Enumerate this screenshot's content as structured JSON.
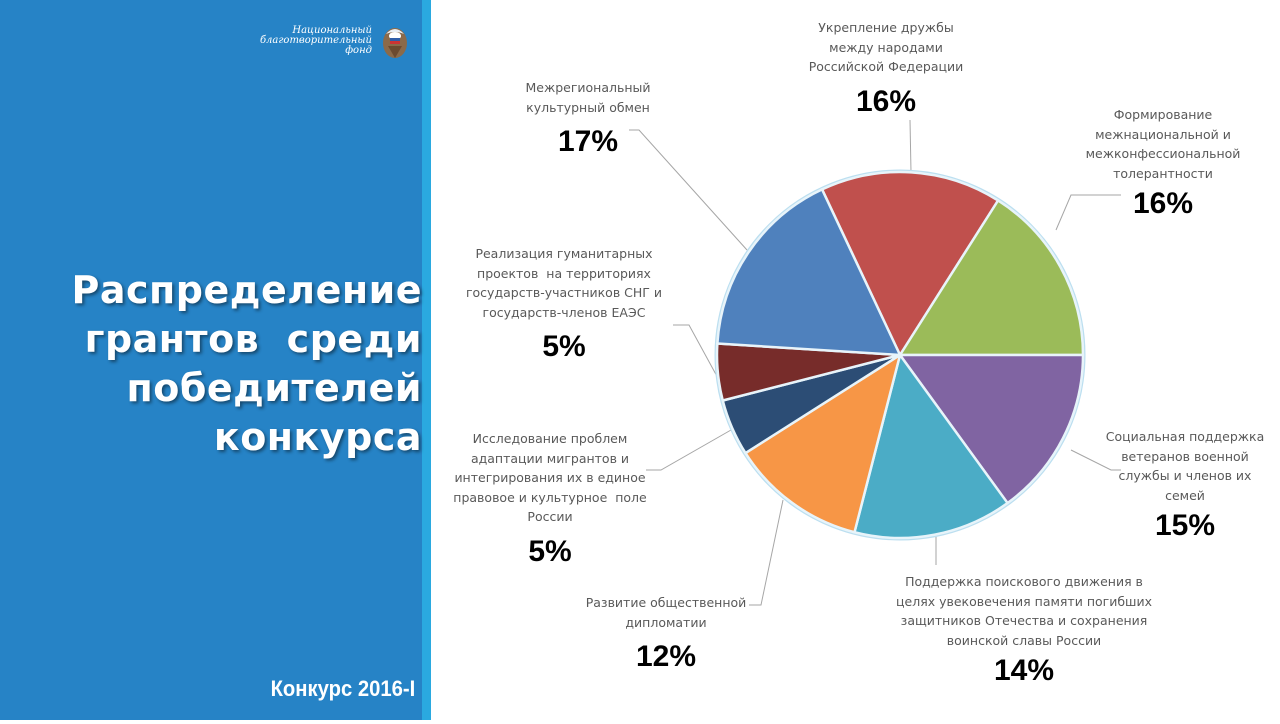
{
  "logo": {
    "lines": [
      "Национальный",
      "благотворительный",
      "фонд"
    ]
  },
  "title": {
    "lines": [
      "Распределение",
      "грантов  среди",
      "победителей",
      "конкурса"
    ]
  },
  "footer": {
    "contest": "Конкурс 2016-I"
  },
  "colors": {
    "panel": "#2683c6",
    "stripe": "#2aa9e0"
  },
  "chart_data": {
    "type": "pie",
    "title": "Распределение грантов среди победителей конкурса",
    "start_angle_deg": -25.2,
    "direction": "clockwise",
    "center": [
      469,
      355
    ],
    "radius": 183,
    "slices": [
      {
        "label": "Укрепление дружбы между народами Российской Федерации",
        "value": 16,
        "display": "16%",
        "color": "#c0504d"
      },
      {
        "label": "Формирование межнациональной и межконфессиональной толерантности",
        "value": 16,
        "display": "16%",
        "color": "#9bbb59"
      },
      {
        "label": "Социальная поддержка ветеранов военной службы и членов их семей",
        "value": 15,
        "display": "15%",
        "color": "#8064a2"
      },
      {
        "label": "Поддержка поискового движения в целях увековечения памяти погибших защитников Отечества и сохранения воинской славы России",
        "value": 14,
        "display": "14%",
        "color": "#4bacc6"
      },
      {
        "label": "Развитие общественной дипломатии",
        "value": 12,
        "display": "12%",
        "color": "#f79646"
      },
      {
        "label": "Исследование проблем адаптации мигрантов и интегрирования их в единое правовое и культурное поле России",
        "value": 5,
        "display": "5%",
        "color": "#2c4d75"
      },
      {
        "label": "Реализация гуманитарных проектов на территориях государств-участников СНГ и государств-членов ЕАЭС",
        "value": 5,
        "display": "5%",
        "color": "#772c2a"
      },
      {
        "label": "Межрегиональный культурный обмен",
        "value": 17,
        "display": "17%",
        "color": "#4f81bd"
      }
    ],
    "labels": [
      {
        "lines": [
          "Укрепление дружбы",
          "между народами",
          "Российской Федерации"
        ],
        "pct": "16%"
      },
      {
        "lines": [
          "Формирование",
          "межнациональной и",
          "межконфессиональной",
          "толерантности"
        ],
        "pct": "16%"
      },
      {
        "lines": [
          "Социальная поддержка",
          "ветеранов военной",
          "службы и членов их",
          "семей"
        ],
        "pct": "15%"
      },
      {
        "lines": [
          "Поддержка поискового движения в",
          "целях увековечения памяти погибших",
          "защитников Отечества и сохранения",
          "воинской славы России"
        ],
        "pct": "14%"
      },
      {
        "lines": [
          "Развитие общественной",
          "дипломатии"
        ],
        "pct": "12%"
      },
      {
        "lines": [
          "Исследование проблем",
          "адаптации мигрантов и",
          "интегрирования их в единое",
          "правовое и культурное  поле",
          "России"
        ],
        "pct": "5%"
      },
      {
        "lines": [
          "Реализация гуманитарных",
          "проектов  на территориях",
          "государств-участников СНГ и",
          "государств-членов ЕАЭС"
        ],
        "pct": "5%"
      },
      {
        "lines": [
          "Межрегиональный",
          "культурный обмен"
        ],
        "pct": "17%"
      }
    ],
    "legend": "none",
    "data_labels": "outside with leader lines"
  }
}
